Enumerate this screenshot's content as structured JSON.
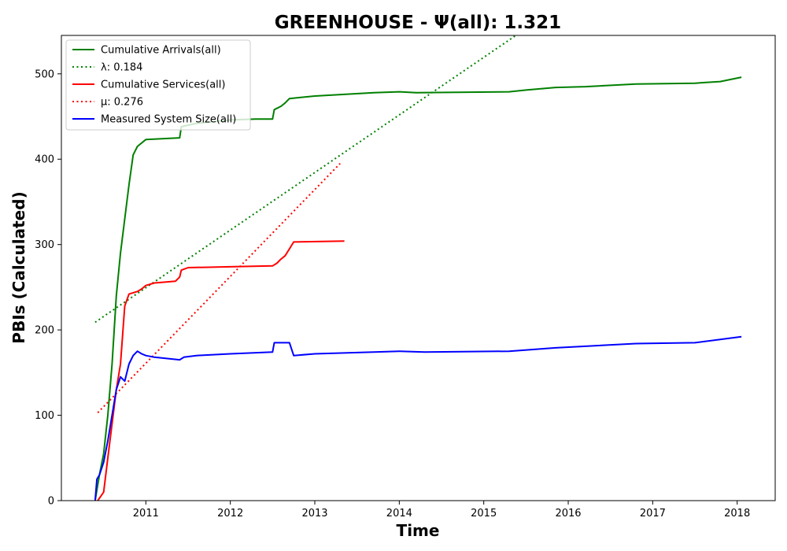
{
  "chart_data": {
    "type": "line",
    "title": "GREENHOUSE -  Ψ(all): 1.321",
    "xlabel": "Time",
    "ylabel": "PBIs (Calculated)",
    "xlim": [
      2010.0,
      2018.45
    ],
    "ylim": [
      0,
      545
    ],
    "x_ticks": [
      2011,
      2012,
      2013,
      2014,
      2015,
      2016,
      2017,
      2018
    ],
    "x_tick_labels": [
      "2011",
      "2012",
      "2013",
      "2014",
      "2015",
      "2016",
      "2017",
      "2018"
    ],
    "y_ticks": [
      0,
      100,
      200,
      300,
      400,
      500
    ],
    "y_tick_labels": [
      "0",
      "100",
      "200",
      "300",
      "400",
      "500"
    ],
    "grid": false,
    "legend_position": "top-left",
    "series": [
      {
        "name": "Cumulative Arrivals(all)",
        "color": "#008000",
        "style": "solid",
        "x": [
          2010.4,
          2010.45,
          2010.5,
          2010.55,
          2010.6,
          2010.65,
          2010.7,
          2010.75,
          2010.8,
          2010.85,
          2010.9,
          2011.0,
          2011.4,
          2011.42,
          2011.6,
          2011.8,
          2012.0,
          2012.3,
          2012.5,
          2012.52,
          2012.6,
          2012.65,
          2012.7,
          2013.0,
          2013.7,
          2014.0,
          2014.2,
          2015.3,
          2015.5,
          2015.85,
          2016.2,
          2016.8,
          2017.5,
          2017.8,
          2018.05
        ],
        "y": [
          0,
          30,
          55,
          100,
          160,
          240,
          290,
          330,
          370,
          405,
          415,
          423,
          425,
          438,
          442,
          444,
          446,
          447,
          447,
          458,
          462,
          466,
          471,
          474,
          478,
          479,
          478,
          479,
          481,
          484,
          485,
          488,
          489,
          491,
          496
        ]
      },
      {
        "name": "λ: 0.184",
        "color": "#008000",
        "style": "dotted",
        "x": [
          2010.4,
          2015.38
        ],
        "y": [
          209,
          545
        ]
      },
      {
        "name": "Cumulative Services(all)",
        "color": "#ff0000",
        "style": "solid",
        "x": [
          2010.43,
          2010.5,
          2010.55,
          2010.6,
          2010.65,
          2010.7,
          2010.75,
          2010.8,
          2010.9,
          2010.95,
          2011.0,
          2011.1,
          2011.35,
          2011.4,
          2011.42,
          2011.5,
          2012.0,
          2012.5,
          2012.55,
          2012.6,
          2012.65,
          2012.7,
          2012.75,
          2013.35
        ],
        "y": [
          0,
          10,
          50,
          90,
          130,
          160,
          228,
          242,
          245,
          248,
          252,
          255,
          257,
          262,
          270,
          273,
          274,
          275,
          278,
          283,
          287,
          295,
          303,
          304
        ]
      },
      {
        "name": "μ: 0.276",
        "color": "#ff0000",
        "style": "dotted",
        "x": [
          2010.43,
          2013.3
        ],
        "y": [
          103,
          395
        ]
      },
      {
        "name": "Measured System Size(all)",
        "color": "#0000ff",
        "style": "solid",
        "x": [
          2010.4,
          2010.42,
          2010.45,
          2010.5,
          2010.55,
          2010.6,
          2010.65,
          2010.7,
          2010.75,
          2010.8,
          2010.85,
          2010.9,
          2010.95,
          2011.0,
          2011.1,
          2011.4,
          2011.45,
          2011.6,
          2012.0,
          2012.5,
          2012.52,
          2012.7,
          2012.75,
          2013.0,
          2013.7,
          2014.0,
          2014.3,
          2015.3,
          2015.85,
          2016.8,
          2017.5,
          2018.05
        ],
        "y": [
          0,
          25,
          30,
          45,
          70,
          100,
          130,
          145,
          140,
          160,
          170,
          175,
          172,
          170,
          168,
          165,
          168,
          170,
          172,
          174,
          185,
          185,
          170,
          172,
          174,
          175,
          174,
          175,
          179,
          184,
          185,
          192
        ]
      }
    ]
  }
}
